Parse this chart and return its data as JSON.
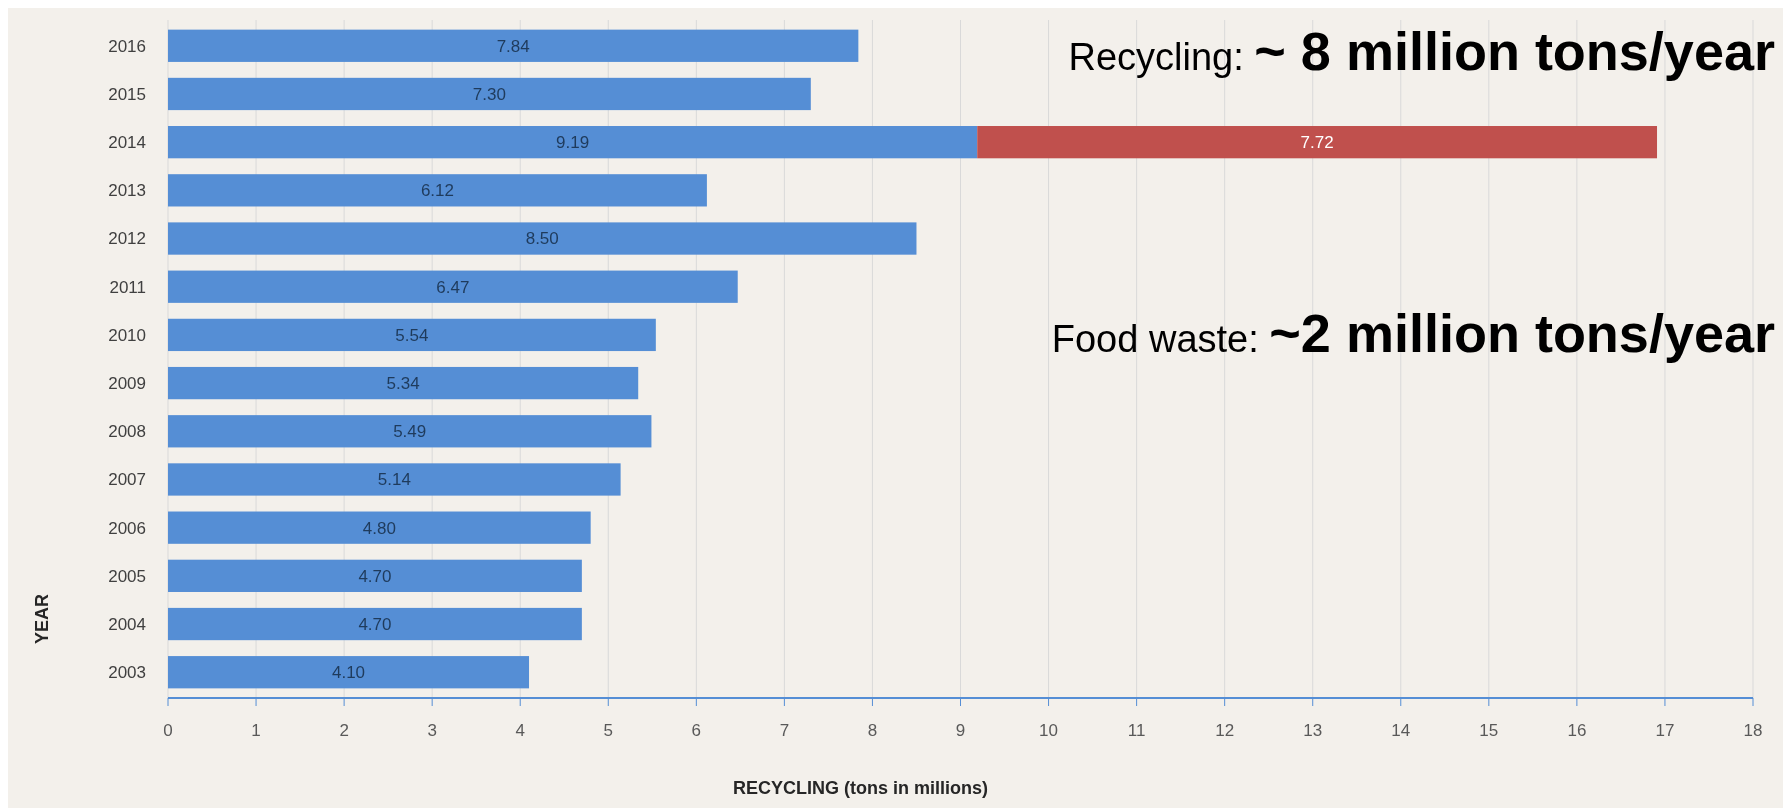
{
  "chart_data": {
    "type": "bar",
    "orientation": "horizontal",
    "stacked": true,
    "xlabel": "RECYCLING (tons in millions)",
    "ylabel": "YEAR",
    "categories": [
      "2016",
      "2015",
      "2014",
      "2013",
      "2012",
      "2011",
      "2010",
      "2009",
      "2008",
      "2007",
      "2006",
      "2005",
      "2004",
      "2003"
    ],
    "series": [
      {
        "color": "#558ed5",
        "values": [
          7.84,
          7.3,
          9.19,
          6.12,
          8.5,
          6.47,
          5.54,
          5.34,
          5.49,
          5.14,
          4.8,
          4.7,
          4.7,
          4.1
        ],
        "value_labels": [
          "7.84",
          "7.30",
          "9.19",
          "6.12",
          "8.50",
          "6.47",
          "5.54",
          "5.34",
          "5.49",
          "5.14",
          "4.80",
          "4.70",
          "4.70",
          "4.10"
        ]
      },
      {
        "color": "#c0504d",
        "values": [
          null,
          null,
          7.72,
          null,
          null,
          null,
          null,
          null,
          null,
          null,
          null,
          null,
          null,
          null
        ],
        "value_labels": [
          null,
          null,
          "7.72",
          null,
          null,
          null,
          null,
          null,
          null,
          null,
          null,
          null,
          null,
          null
        ]
      }
    ],
    "xlim": [
      0,
      18
    ],
    "xticks": [
      0,
      1,
      2,
      3,
      4,
      5,
      6,
      7,
      8,
      9,
      10,
      11,
      12,
      13,
      14,
      15,
      16,
      17,
      18
    ],
    "grid": "x",
    "annotations": [
      "Recycling:",
      "~ 8 million tons/year",
      "Food waste:",
      "~2 million tons/year"
    ]
  }
}
